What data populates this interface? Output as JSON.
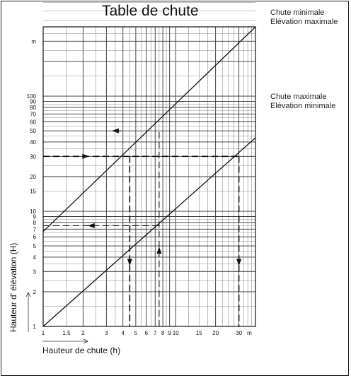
{
  "chart_data": {
    "type": "line",
    "title": "Table de chute",
    "xlabel": "Hauteur de chute (h)",
    "ylabel": "Hauteur d' élévation (H)",
    "xunit": "m",
    "yunit": "m",
    "xscale": "log",
    "yscale": "log",
    "xlim": [
      1,
      40
    ],
    "ylim": [
      1,
      400
    ],
    "x_ticks": [
      "1",
      "1.5",
      "2",
      "3",
      "4",
      "5",
      "6",
      "7",
      "8",
      "9",
      "10",
      "15",
      "20",
      "30"
    ],
    "y_ticks": [
      "1",
      "2",
      "3",
      "4",
      "5",
      "6",
      "7",
      "8",
      "9",
      "10",
      "15",
      "20",
      "30",
      "40",
      "50",
      "60",
      "70",
      "80",
      "90",
      "100"
    ],
    "series": [
      {
        "name": "Chute minimale\nElévation maximale",
        "x": [
          1,
          40
        ],
        "y": [
          6.67,
          400
        ]
      },
      {
        "name": "Chute maximale\nElévation minimale",
        "x": [
          1,
          40
        ],
        "y": [
          1,
          43.5
        ]
      }
    ],
    "annotations": [
      {
        "type": "horizontal-arrow-line",
        "y": 30,
        "x_from": 1,
        "x_to": 30,
        "direction": "right"
      },
      {
        "type": "vertical-arrow-line",
        "x": 4.5,
        "y_from": 30,
        "y_to": 1,
        "direction": "down"
      },
      {
        "type": "vertical-arrow-line",
        "x": 30,
        "y_from": 30,
        "y_to": 1,
        "direction": "down"
      },
      {
        "type": "horizontal-arrow-line",
        "y": 7.5,
        "x_from": 1,
        "x_to": 7.5,
        "direction": "left"
      },
      {
        "type": "vertical-arrow-line",
        "x": 7.5,
        "y_from": 1,
        "y_to": 50,
        "direction": "up"
      },
      {
        "type": "arrow",
        "x": 3.5,
        "y": 50,
        "direction": "left"
      }
    ]
  }
}
